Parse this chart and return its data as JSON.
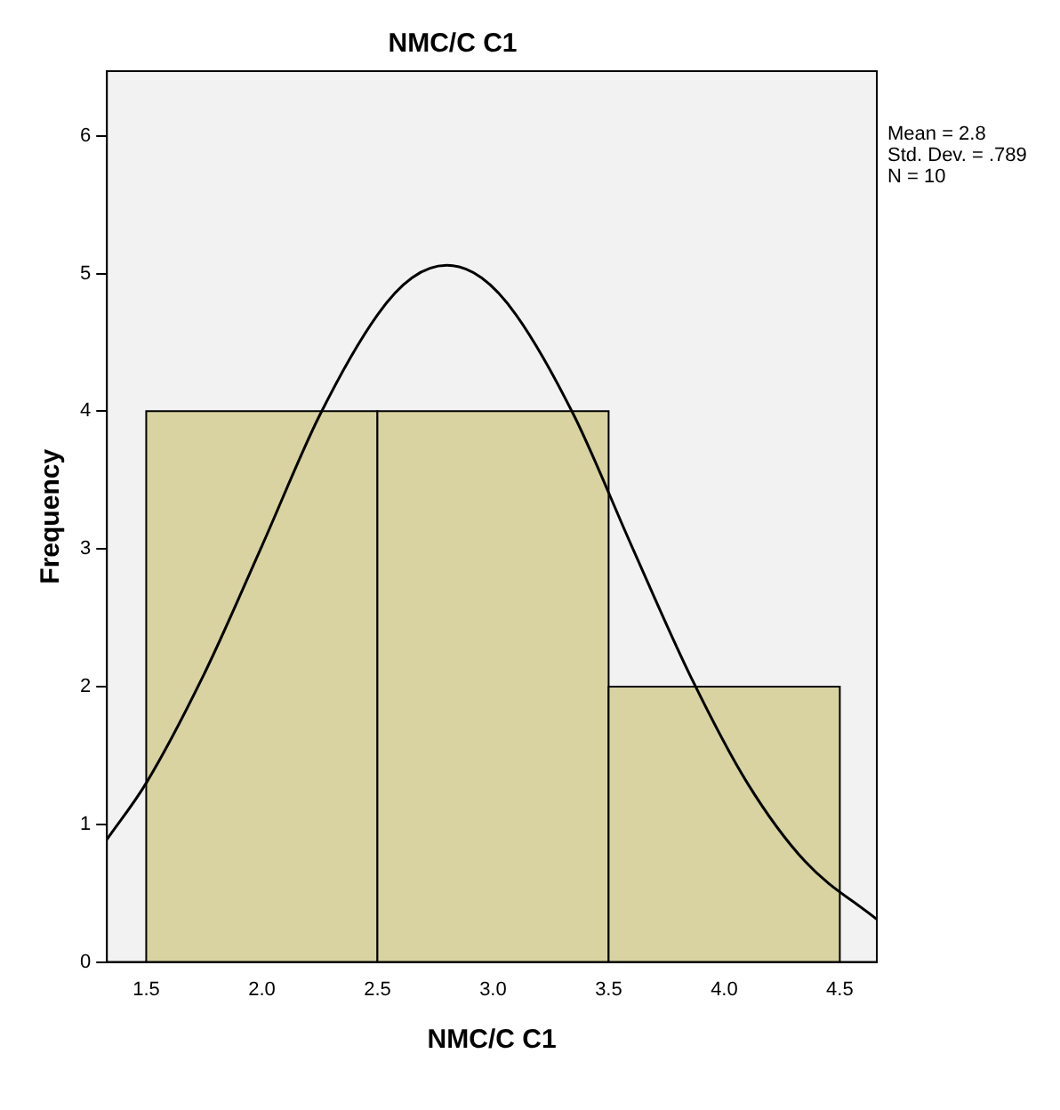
{
  "chart_data": {
    "type": "histogram",
    "title": "NMC/C C1",
    "xlabel": "NMC/C C1",
    "ylabel": "Frequency",
    "bins": [
      1.5,
      2.5,
      3.5,
      4.5
    ],
    "values": [
      4,
      4,
      2
    ],
    "color": "#d8d3a0",
    "series": [
      {
        "type": "line",
        "color": "#000000",
        "x": [
          1.33,
          1.5,
          1.75,
          2.0,
          2.25,
          2.5,
          2.65,
          2.8,
          2.95,
          3.1,
          3.35,
          3.6,
          3.85,
          4.1,
          4.35,
          4.66
        ],
        "values": [
          0.89,
          1.3,
          2.09,
          3.02,
          3.97,
          4.7,
          4.97,
          5.06,
          4.97,
          4.7,
          3.97,
          3.02,
          2.09,
          1.3,
          0.73,
          0.31
        ]
      }
    ],
    "xlim": [
      1.33,
      4.66
    ],
    "xticks": [
      1.5,
      {
        "value": 2,
        "label": "2.0"
      },
      2.5,
      {
        "value": 3,
        "label": "3.0"
      },
      3.5,
      {
        "value": 4,
        "label": "4.0"
      },
      4.5
    ],
    "ylim": [
      0,
      6.47
    ],
    "yticks": [
      0,
      1,
      2,
      3,
      4,
      5,
      6
    ],
    "grid": false,
    "legend": false,
    "marker": "none",
    "annotations": [
      "Mean = 2.8",
      "Std. Dev. = .789",
      "N = 10"
    ]
  }
}
